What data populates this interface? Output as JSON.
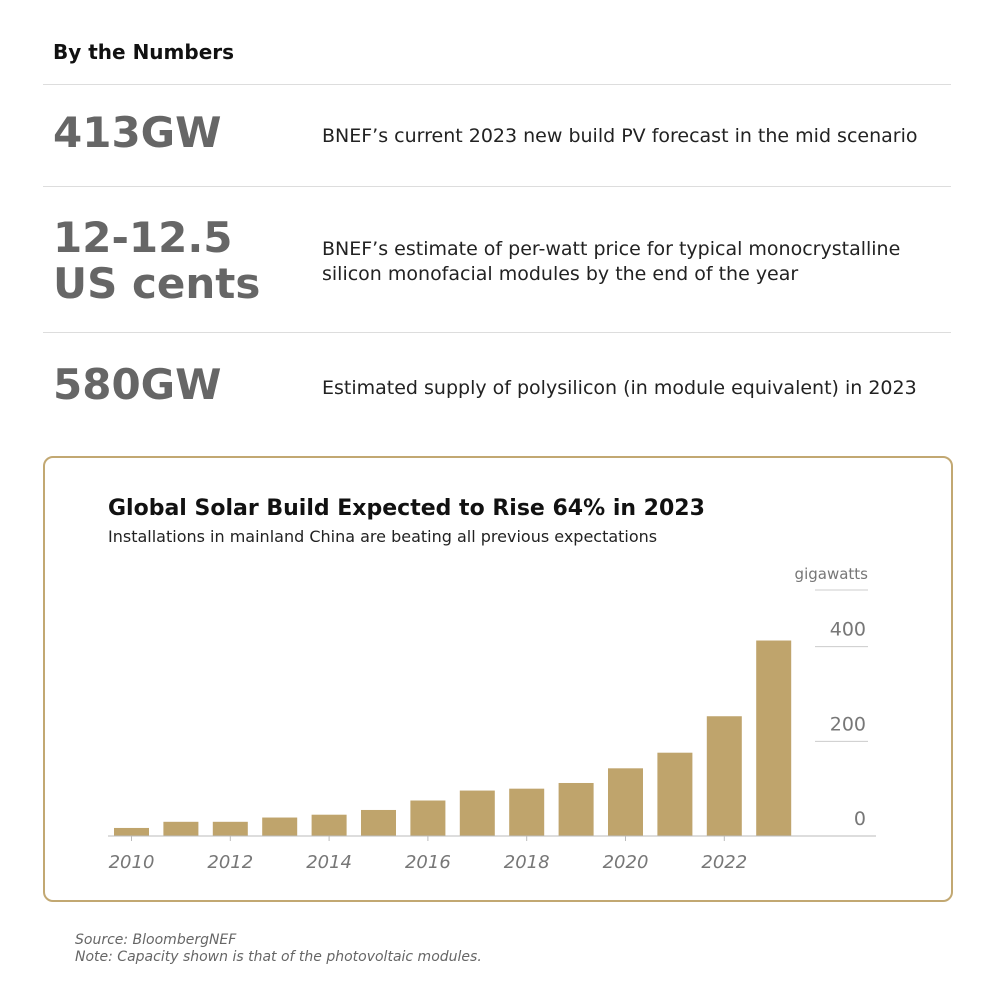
{
  "header": {
    "title": "By the Numbers"
  },
  "stats": [
    {
      "value_lines": [
        "413GW"
      ],
      "description": "BNEF’s current 2023 new build PV forecast in the mid scenario"
    },
    {
      "value_lines": [
        "12-12.5",
        "US cents"
      ],
      "description": "BNEF’s estimate of per-watt price for typical monocrystalline silicon monofacial modules by the end of the year"
    },
    {
      "value_lines": [
        "580GW"
      ],
      "description": "Estimated supply of polysilicon (in module equivalent) in 2023"
    }
  ],
  "chart_data": {
    "type": "bar",
    "title": "Global Solar Build Expected to Rise 64% in 2023",
    "subtitle": "Installations in mainland China are beating all previous expectations",
    "unit_label": "gigawatts",
    "categories": [
      2010,
      2011,
      2012,
      2013,
      2014,
      2015,
      2016,
      2017,
      2018,
      2019,
      2020,
      2021,
      2022,
      2023
    ],
    "values": [
      17,
      30,
      30,
      39,
      45,
      55,
      75,
      96,
      100,
      112,
      143,
      176,
      253,
      413
    ],
    "x_tick_labels": [
      "2010",
      "2012",
      "2014",
      "2016",
      "2018",
      "2020",
      "2022"
    ],
    "y_ticks": [
      0,
      200,
      400
    ],
    "ylim": [
      0,
      450
    ],
    "grid": false,
    "y_axis_side": "right",
    "color": "#bfa46c"
  },
  "footer": {
    "source": "Source: BloombergNEF",
    "note": "Note: Capacity shown is that of the photovoltaic modules."
  }
}
